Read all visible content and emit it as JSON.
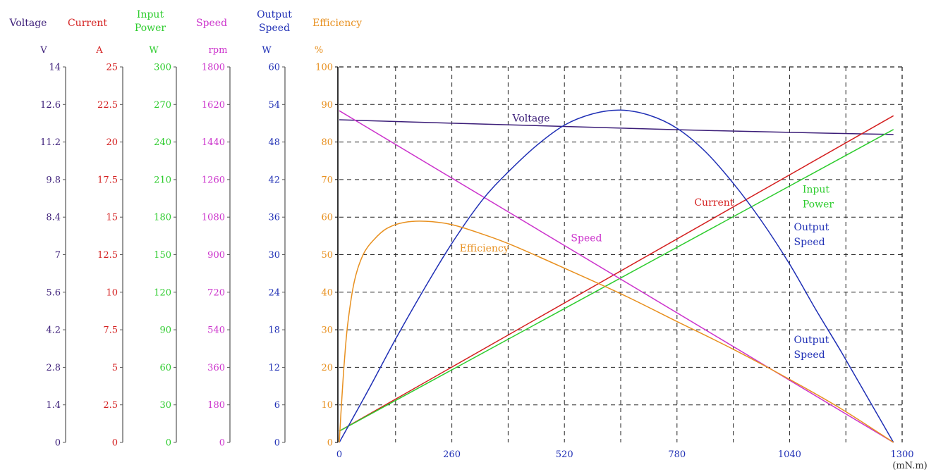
{
  "chart_data": {
    "type": "line",
    "x_axis": {
      "min": 0,
      "max": 1300,
      "ticks": [
        "0",
        "260",
        "520",
        "780",
        "1040",
        "1300"
      ],
      "unit": "(mN.m)"
    },
    "y_axes": [
      {
        "key": "voltage",
        "title": [
          "Voltage"
        ],
        "unit": "V",
        "color": "#3b1d78",
        "max": 14,
        "ticks": [
          "0",
          "1.4",
          "2.8",
          "4.2",
          "5.6",
          "7",
          "8.4",
          "9.8",
          "11.2",
          "12.6",
          "14"
        ]
      },
      {
        "key": "current",
        "title": [
          "Current"
        ],
        "unit": "A",
        "color": "#d42020",
        "max": 25,
        "ticks": [
          "0",
          "2.5",
          "5",
          "7.5",
          "10",
          "12.5",
          "15",
          "17.5",
          "20",
          "22.5",
          "25"
        ]
      },
      {
        "key": "input_power",
        "title": [
          "Input",
          "Power"
        ],
        "unit": "W",
        "color": "#2ecc2e",
        "max": 300,
        "ticks": [
          "0",
          "30",
          "60",
          "90",
          "120",
          "150",
          "180",
          "210",
          "240",
          "270",
          "300"
        ]
      },
      {
        "key": "speed",
        "title": [
          "Speed"
        ],
        "unit": "rpm",
        "color": "#cc33cc",
        "max": 1800,
        "ticks": [
          "0",
          "180",
          "360",
          "540",
          "720",
          "900",
          "1080",
          "1260",
          "1440",
          "1620",
          "1800"
        ]
      },
      {
        "key": "output_speed",
        "title": [
          "Output",
          "Speed"
        ],
        "unit": "W",
        "color": "#1f2fb5",
        "max": 60,
        "ticks": [
          "0",
          "6",
          "12",
          "18",
          "24",
          "30",
          "36",
          "42",
          "48",
          "54",
          "60"
        ]
      },
      {
        "key": "efficiency",
        "title": [
          "Efficiency"
        ],
        "unit": "%",
        "color": "#e8901f",
        "max": 100,
        "ticks": [
          "0",
          "10",
          "20",
          "30",
          "40",
          "50",
          "60",
          "70",
          "80",
          "90",
          "100"
        ]
      }
    ],
    "series": [
      {
        "name": "Voltage",
        "axis": "voltage",
        "color": "#3b1d78",
        "points": [
          [
            0,
            12.03
          ],
          [
            260,
            11.9
          ],
          [
            520,
            11.78
          ],
          [
            780,
            11.66
          ],
          [
            1040,
            11.56
          ],
          [
            1280,
            11.48
          ]
        ]
      },
      {
        "name": "Current",
        "axis": "current",
        "color": "#d42020",
        "points": [
          [
            0,
            0.75
          ],
          [
            1280,
            21.75
          ]
        ]
      },
      {
        "name": "Input Power",
        "axis": "input_power",
        "color": "#2ecc2e",
        "points": [
          [
            0,
            9
          ],
          [
            1280,
            250
          ]
        ]
      },
      {
        "name": "Speed",
        "axis": "speed",
        "color": "#cc33cc",
        "points": [
          [
            0,
            1590
          ],
          [
            1280,
            0
          ]
        ]
      },
      {
        "name": "Output Speed",
        "axis": "output_speed",
        "color": "#1f2fb5",
        "points": [
          [
            0,
            0
          ],
          [
            65,
            8.1
          ],
          [
            130,
            16.5
          ],
          [
            195,
            24.4
          ],
          [
            260,
            31.8
          ],
          [
            330,
            38.7
          ],
          [
            390,
            43.2
          ],
          [
            455,
            47.4
          ],
          [
            520,
            50.7
          ],
          [
            585,
            52.5
          ],
          [
            650,
            53.1
          ],
          [
            715,
            52.3
          ],
          [
            780,
            50.2
          ],
          [
            845,
            46.5
          ],
          [
            910,
            41.4
          ],
          [
            975,
            35.4
          ],
          [
            1040,
            28.5
          ],
          [
            1100,
            21.3
          ],
          [
            1160,
            14.4
          ],
          [
            1220,
            7.2
          ],
          [
            1280,
            0
          ]
        ]
      },
      {
        "name": "Efficiency",
        "axis": "efficiency",
        "color": "#e8901f",
        "points": [
          [
            0,
            0
          ],
          [
            5,
            10
          ],
          [
            12,
            22
          ],
          [
            20,
            32
          ],
          [
            35,
            43
          ],
          [
            55,
            50
          ],
          [
            80,
            54
          ],
          [
            110,
            57
          ],
          [
            150,
            58.6
          ],
          [
            200,
            58.9
          ],
          [
            260,
            58
          ],
          [
            330,
            55.5
          ],
          [
            400,
            52.5
          ],
          [
            520,
            46.4
          ],
          [
            650,
            39.6
          ],
          [
            780,
            32.2
          ],
          [
            910,
            24.8
          ],
          [
            1040,
            16.8
          ],
          [
            1160,
            8.9
          ],
          [
            1280,
            0
          ]
        ]
      }
    ],
    "annotations": [
      {
        "text": [
          "Voltage"
        ],
        "color": "#3b1d78",
        "x": 400,
        "y_pct": 85.5
      },
      {
        "text": [
          "Current"
        ],
        "color": "#d42020",
        "x": 820,
        "y_pct": 63
      },
      {
        "text": [
          "Input",
          "Power"
        ],
        "color": "#2ecc2e",
        "x": 1070,
        "y_pct": 66.5
      },
      {
        "text": [
          "Output",
          "Speed"
        ],
        "color": "#1f2fb5",
        "x": 1050,
        "y_pct": 56.5
      },
      {
        "text": [
          "Speed"
        ],
        "color": "#cc33cc",
        "x": 535,
        "y_pct": 53.6
      },
      {
        "text": [
          "Efficiency"
        ],
        "color": "#e8901f",
        "x": 278,
        "y_pct": 50.8
      },
      {
        "text": [
          "Output",
          "Speed"
        ],
        "color": "#1f2fb5",
        "x": 1050,
        "y_pct": 26.5
      }
    ],
    "grid": true
  }
}
